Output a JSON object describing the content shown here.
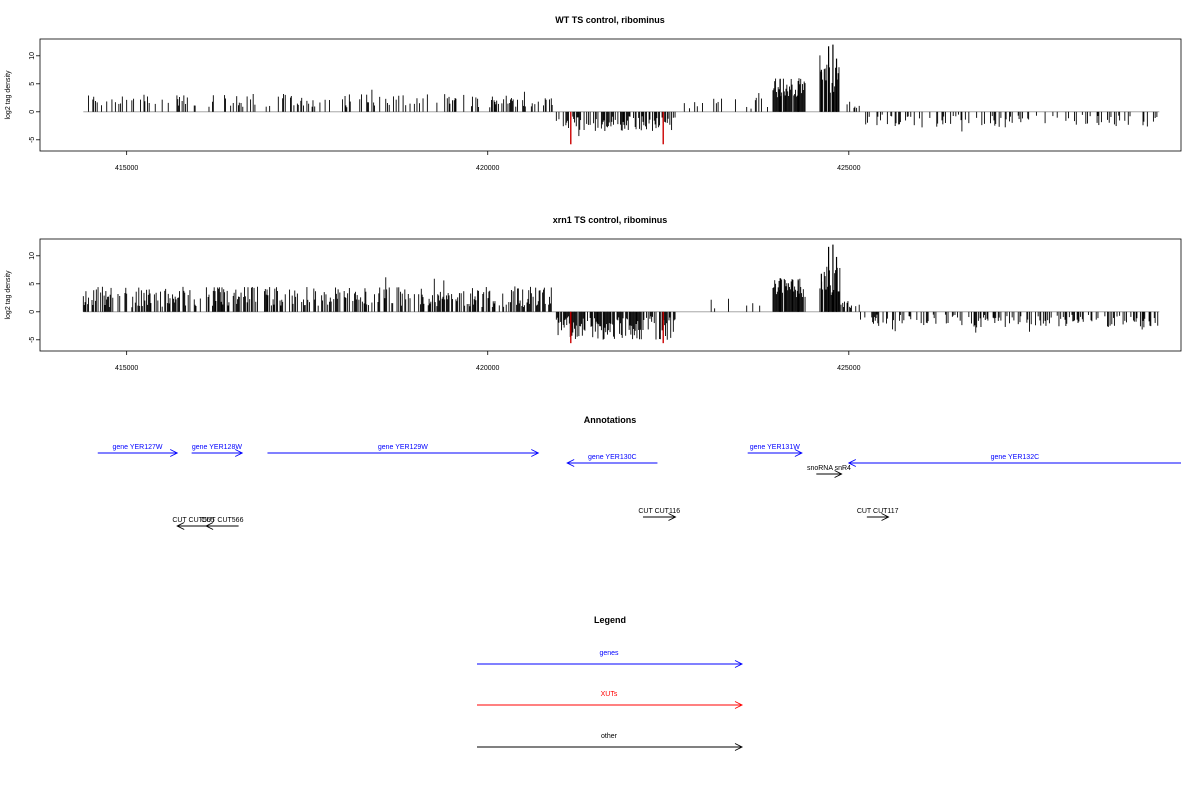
{
  "colors": {
    "gene": "#0000ff",
    "xut": "#ff0000",
    "other": "#000000",
    "highlight": "#cc0000",
    "baseline": "#999999"
  },
  "chart_data": [
    {
      "type": "bar",
      "title": "WT TS control, ribominus",
      "ylabel": "log2 tag density",
      "xlim": [
        413800,
        429600
      ],
      "ylim": [
        -7,
        13
      ],
      "x_ticks": [
        415000,
        420000,
        425000
      ],
      "y_ticks": [
        -5,
        0,
        5,
        10
      ],
      "grid": false,
      "peaks": [
        {
          "x": 421150,
          "y": -5.8,
          "highlight": true
        },
        {
          "x": 422430,
          "y": -5.8,
          "highlight": true
        },
        {
          "x": 424720,
          "y": 11.7
        },
        {
          "x": 424780,
          "y": 12.0
        },
        {
          "x": 424830,
          "y": 9.5
        },
        {
          "x": 424620,
          "y": 7.5
        },
        {
          "x": 424050,
          "y": 5.9
        },
        {
          "x": 424300,
          "y": 5.5
        }
      ]
    },
    {
      "type": "bar",
      "title": "xrn1 TS control, ribominus",
      "ylabel": "log2 tag density",
      "xlim": [
        413800,
        429600
      ],
      "ylim": [
        -7,
        13
      ],
      "x_ticks": [
        415000,
        420000,
        425000
      ],
      "y_ticks": [
        -5,
        0,
        5,
        10
      ],
      "grid": false,
      "peaks": [
        {
          "x": 421150,
          "y": -5.6,
          "highlight": true
        },
        {
          "x": 422430,
          "y": -5.6,
          "highlight": true
        },
        {
          "x": 424720,
          "y": 11.6
        },
        {
          "x": 424780,
          "y": 12.0
        },
        {
          "x": 424830,
          "y": 9.8
        },
        {
          "x": 424620,
          "y": 6.8
        },
        {
          "x": 424050,
          "y": 6.0
        },
        {
          "x": 424300,
          "y": 5.6
        }
      ]
    }
  ],
  "annotations": {
    "title": "Annotations",
    "features": [
      {
        "label": "gene YER127W",
        "kind": "gene",
        "start": 414600,
        "end": 415700,
        "strand": "+",
        "row": 0
      },
      {
        "label": "gene YER128W",
        "kind": "gene",
        "start": 415900,
        "end": 416600,
        "strand": "+",
        "row": 0
      },
      {
        "label": "gene YER129W",
        "kind": "gene",
        "start": 416950,
        "end": 420700,
        "strand": "+",
        "row": 0
      },
      {
        "label": "gene YER130C",
        "kind": "gene",
        "start": 421100,
        "end": 422350,
        "strand": "-",
        "row": 1
      },
      {
        "label": "gene YER131W",
        "kind": "gene",
        "start": 423600,
        "end": 424350,
        "strand": "+",
        "row": 0
      },
      {
        "label": "snoRNA snR4",
        "kind": "other",
        "start": 424550,
        "end": 424900,
        "strand": "+",
        "row": 2
      },
      {
        "label": "gene YER132C",
        "kind": "gene",
        "start": 425000,
        "end": 429600,
        "strand": "-",
        "row": 1
      },
      {
        "label": "CUT CUT565",
        "kind": "other",
        "start": 415700,
        "end": 416150,
        "strand": "-",
        "row": 4
      },
      {
        "label": "CUT CUT566",
        "kind": "other",
        "start": 416100,
        "end": 416550,
        "strand": "-",
        "row": 4
      },
      {
        "label": "CUT CUT116",
        "kind": "other",
        "start": 422150,
        "end": 422600,
        "strand": "+",
        "row": 3
      },
      {
        "label": "CUT CUT117",
        "kind": "other",
        "start": 425250,
        "end": 425550,
        "strand": "+",
        "row": 3
      }
    ]
  },
  "legend": {
    "title": "Legend",
    "items": [
      {
        "label": "genes",
        "kind": "gene"
      },
      {
        "label": "XUTs",
        "kind": "xut"
      },
      {
        "label": "other",
        "kind": "other"
      }
    ]
  }
}
